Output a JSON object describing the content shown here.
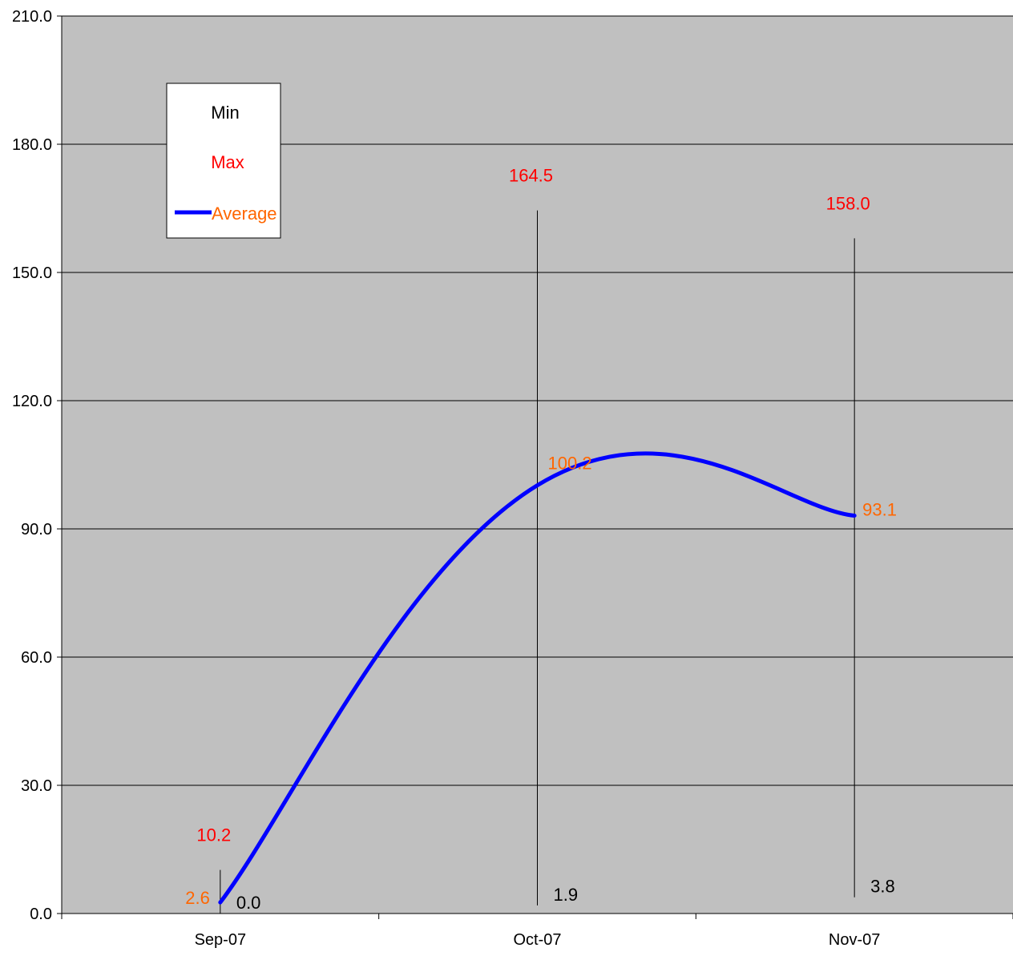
{
  "chart_data": {
    "type": "line",
    "title": "",
    "xlabel": "",
    "ylabel": "",
    "categories": [
      "Sep-07",
      "Oct-07",
      "Nov-07"
    ],
    "series": [
      {
        "name": "Min",
        "values": [
          0.0,
          1.9,
          3.8
        ],
        "color": "#000000",
        "style": "high-low-bar-end"
      },
      {
        "name": "Max",
        "values": [
          10.2,
          164.5,
          158.0
        ],
        "color": "#ff0000",
        "style": "high-low-bar-end"
      },
      {
        "name": "Average",
        "values": [
          2.6,
          100.2,
          93.1
        ],
        "color": "#ff6600",
        "line_color": "#0000ff",
        "style": "smoothed-line"
      }
    ],
    "data_labels": {
      "min": [
        "0.0",
        "1.9",
        "3.8"
      ],
      "max": [
        "10.2",
        "164.5",
        "158.0"
      ],
      "average": [
        "2.6",
        "100.2",
        "93.1"
      ]
    },
    "ylim": [
      0,
      210
    ],
    "yticks": [
      0,
      30,
      60,
      90,
      120,
      150,
      180,
      210
    ],
    "ytick_labels": [
      "0.0",
      "30.0",
      "60.0",
      "90.0",
      "120.0",
      "150.0",
      "180.0",
      "210.0"
    ],
    "grid": true,
    "legend": {
      "position": "top-left",
      "entries": [
        "Min",
        "Max",
        "Average"
      ]
    },
    "colors": {
      "plot_background": "#c0c0c0",
      "gridline": "#000000",
      "average_line": "#0000ff",
      "min_text": "#000000",
      "max_text": "#ff0000",
      "average_text": "#ff6600",
      "high_low_line": "#000000"
    }
  }
}
